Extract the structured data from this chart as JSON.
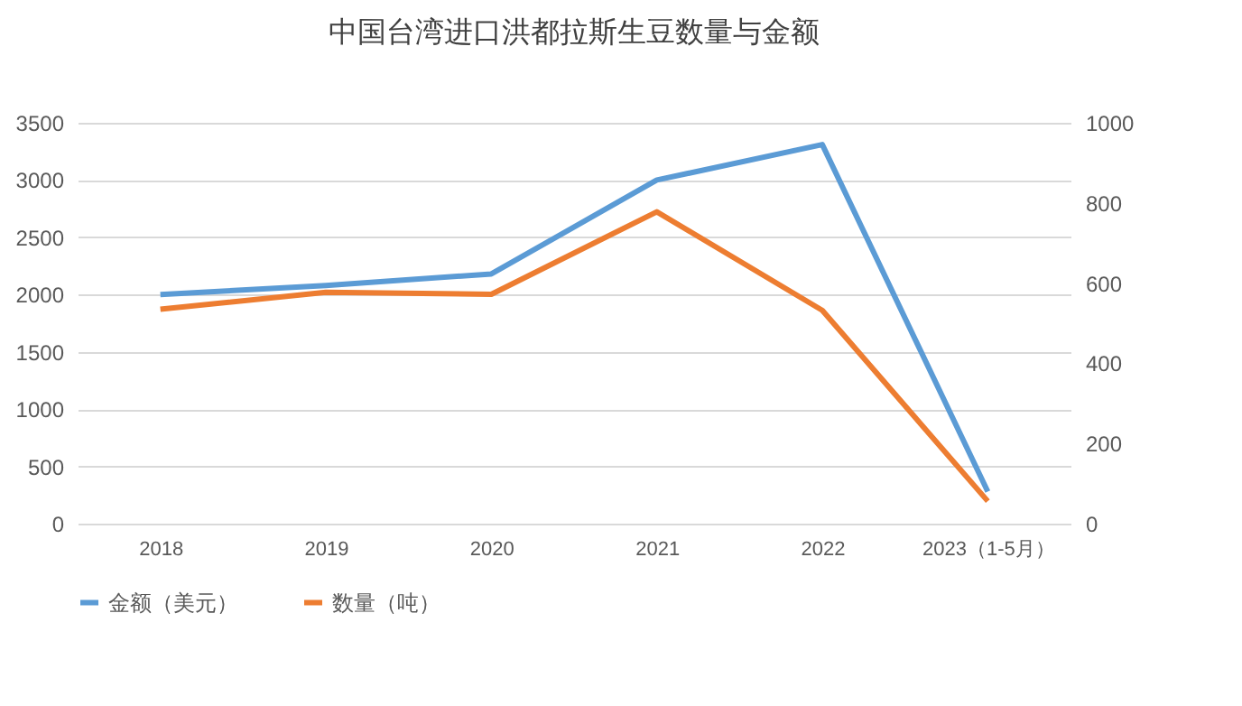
{
  "chart_data": {
    "type": "line",
    "title": "中国台湾进口洪都拉斯生豆数量与金额",
    "categories": [
      "2018",
      "2019",
      "2020",
      "2021",
      "2022",
      "2023（1-5月）"
    ],
    "series": [
      {
        "name": "金额（美元）",
        "color": "#5b9bd5",
        "values": [
          2000,
          2080,
          2180,
          3000,
          3310,
          280
        ]
      },
      {
        "name": "数量（吨）",
        "color": "#ed7d31",
        "axis": "y2",
        "values": [
          535,
          577,
          572,
          778,
          532,
          56
        ]
      }
    ],
    "ylim": [
      0,
      3500
    ],
    "yticks": [
      0,
      500,
      1000,
      1500,
      2000,
      2500,
      3000,
      3500
    ],
    "y2lim": [
      0,
      1000
    ],
    "y2ticks": [
      0,
      200,
      400,
      600,
      800,
      1000
    ],
    "grid": "y",
    "legend": "bottom",
    "marker": "none",
    "line_style": "solid"
  }
}
